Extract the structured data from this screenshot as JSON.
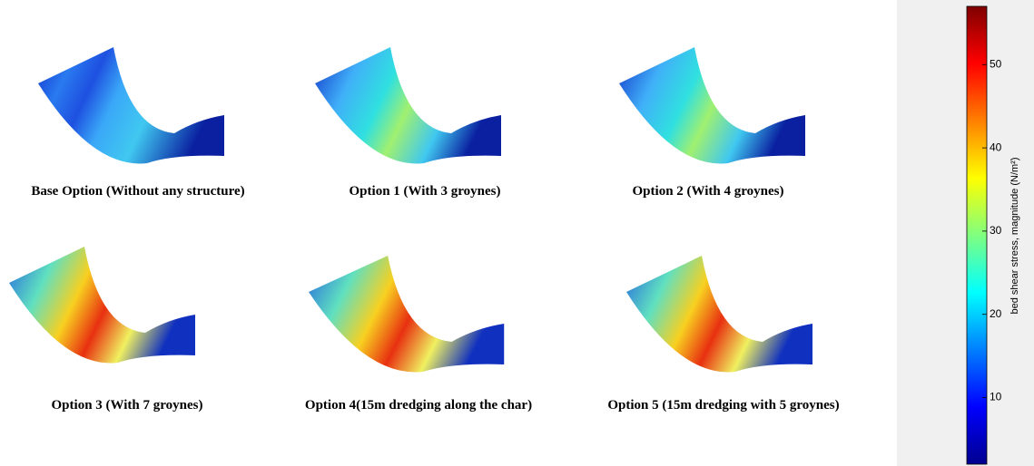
{
  "panels": [
    {
      "caption": "Base Option (Without any structure)"
    },
    {
      "caption": "Option 1 (With 3 groynes)"
    },
    {
      "caption": "Option 2 (With 4 groynes)"
    },
    {
      "caption": "Option 3 (With 7 groynes)"
    },
    {
      "caption": "Option 4(15m dredging along the char)"
    },
    {
      "caption": "Option 5 (15m dredging with 5 groynes)"
    }
  ],
  "colorbar": {
    "label": "bed shear stress, magnitude (N/m²)",
    "lim": [
      2,
      57
    ],
    "ticks": [
      10,
      20,
      30,
      40,
      50
    ]
  }
}
